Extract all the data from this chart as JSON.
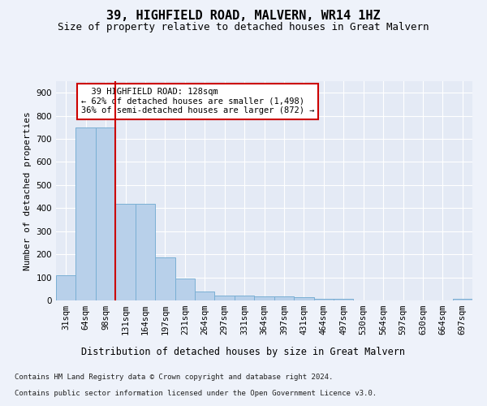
{
  "title": "39, HIGHFIELD ROAD, MALVERN, WR14 1HZ",
  "subtitle": "Size of property relative to detached houses in Great Malvern",
  "xlabel": "Distribution of detached houses by size in Great Malvern",
  "ylabel": "Number of detached properties",
  "footer_line1": "Contains HM Land Registry data © Crown copyright and database right 2024.",
  "footer_line2": "Contains public sector information licensed under the Open Government Licence v3.0.",
  "bin_labels": [
    "31sqm",
    "64sqm",
    "98sqm",
    "131sqm",
    "164sqm",
    "197sqm",
    "231sqm",
    "264sqm",
    "297sqm",
    "331sqm",
    "364sqm",
    "397sqm",
    "431sqm",
    "464sqm",
    "497sqm",
    "530sqm",
    "564sqm",
    "597sqm",
    "630sqm",
    "664sqm",
    "697sqm"
  ],
  "bar_heights": [
    110,
    748,
    751,
    420,
    420,
    188,
    95,
    40,
    20,
    20,
    18,
    18,
    15,
    8,
    8,
    0,
    0,
    0,
    0,
    0,
    8
  ],
  "bar_color": "#b8d0ea",
  "bar_edge_color": "#7aafd4",
  "property_line_x": 2.5,
  "annotation_text": "  39 HIGHFIELD ROAD: 128sqm\n← 62% of detached houses are smaller (1,498)\n36% of semi-detached houses are larger (872) →",
  "annotation_box_color": "#ffffff",
  "annotation_box_edge_color": "#cc0000",
  "vline_color": "#cc0000",
  "ylim": [
    0,
    950
  ],
  "yticks": [
    0,
    100,
    200,
    300,
    400,
    500,
    600,
    700,
    800,
    900
  ],
  "title_fontsize": 11,
  "subtitle_fontsize": 9,
  "xlabel_fontsize": 8.5,
  "ylabel_fontsize": 8,
  "tick_fontsize": 7.5,
  "annotation_fontsize": 7.5,
  "footer_fontsize": 6.5,
  "background_color": "#eef2fa",
  "plot_bg_color": "#e4eaf5",
  "grid_color": "#ffffff"
}
